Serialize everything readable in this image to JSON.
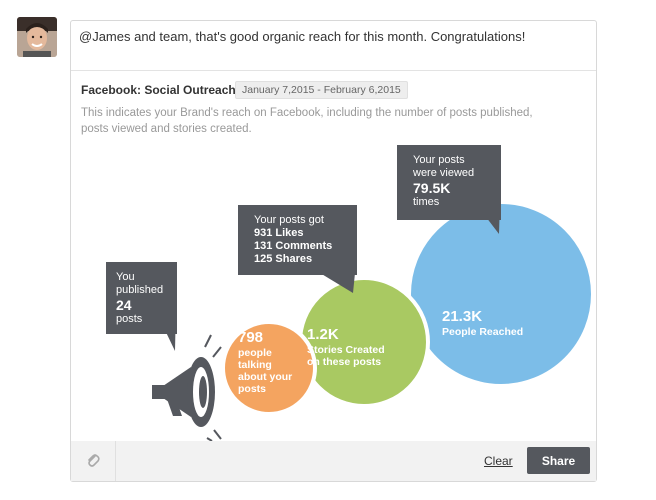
{
  "post": {
    "message": "@James and team, that's good organic reach for this month. Congratulations!"
  },
  "card": {
    "title": "Facebook: Social Outreach",
    "date_range": "January 7,2015 - February 6,2015",
    "description": "This indicates your Brand's reach on Facebook, including the number of posts published, posts viewed and stories created."
  },
  "bubbles": {
    "published": {
      "line1": "You",
      "line2": "published",
      "value": "24",
      "line3": "posts"
    },
    "engagement": {
      "line1": "Your posts got",
      "likes": "931 Likes",
      "comments": "131 Comments",
      "shares": "125 Shares"
    },
    "views": {
      "line1": "Your posts",
      "line2": "were viewed",
      "value": "79.5K",
      "line3": "times"
    }
  },
  "circles": {
    "talking": {
      "value": "798",
      "label1": "people",
      "label2": "talking",
      "label3": "about your",
      "label4": "posts",
      "color": "#f4a460"
    },
    "stories": {
      "value": "1.2K",
      "label1": "Stories Created",
      "label2": "on these posts",
      "color": "#a9c962"
    },
    "reached": {
      "value": "21.3K",
      "label1": "People Reached",
      "color": "#7cbde8"
    }
  },
  "icons": {
    "attach": "paperclip-icon",
    "megaphone": "megaphone-icon"
  },
  "footer": {
    "clear_label": "Clear",
    "share_label": "Share"
  }
}
